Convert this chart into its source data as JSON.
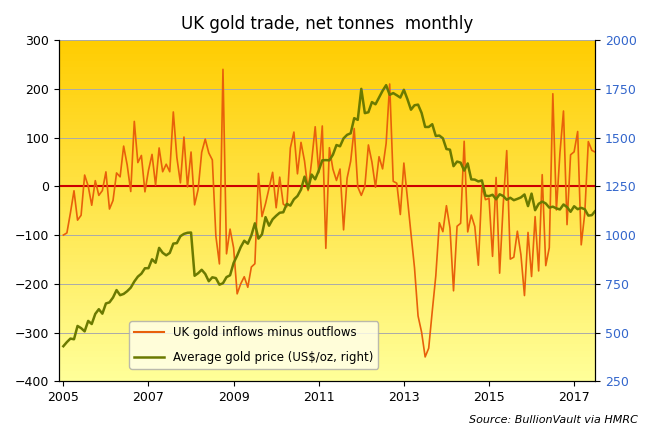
{
  "title": "UK gold trade, net tonnes  monthly",
  "source_text": "Source: BullionVault via HMRC",
  "left_ylim": [
    -400,
    300
  ],
  "right_ylim": [
    250,
    2000
  ],
  "left_yticks": [
    -400,
    -300,
    -200,
    -100,
    0,
    100,
    200,
    300
  ],
  "right_yticks": [
    250,
    500,
    750,
    1000,
    1250,
    1500,
    1750,
    2000
  ],
  "xticks": [
    2005,
    2007,
    2009,
    2011,
    2013,
    2015,
    2017
  ],
  "xlim": [
    2004.9,
    2017.5
  ],
  "net_color": "#e8600a",
  "price_color": "#6b7a00",
  "zero_line_color": "#cc0000",
  "bg_top_color": "#ffcc00",
  "bg_bottom_color": "#ffff99",
  "grid_color": "#aaaaaa",
  "legend_bg": "#ffffee",
  "net_label": "UK gold inflows minus outflows",
  "price_label": "Average gold price (US$/oz, right)"
}
